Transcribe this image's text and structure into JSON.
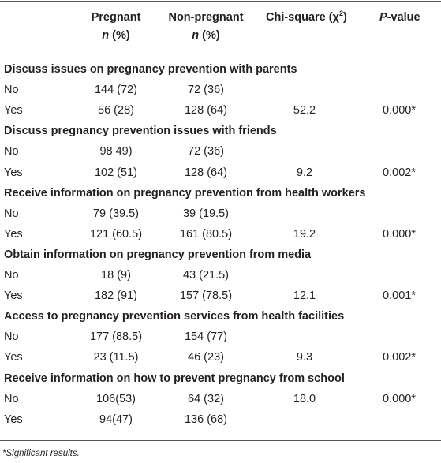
{
  "header": {
    "pregnant": {
      "title": "Pregnant",
      "sub_italic": "n",
      "sub_rest": " (%)"
    },
    "non_pregnant": {
      "title": "Non-pregnant",
      "sub_italic": "n",
      "sub_rest": " (%)"
    },
    "chi_square": {
      "text": "Chi-square (χ",
      "sup": "2",
      "tail": ")"
    },
    "p_value": {
      "italic": "P",
      "rest": "-value"
    }
  },
  "sections": [
    {
      "title": "Discuss issues on pregnancy prevention with parents",
      "rows": [
        [
          "No",
          "144 (72)",
          "72 (36)"
        ],
        [
          "Yes",
          "56 (28)",
          "128 (64)",
          "52.2",
          "0.000*"
        ]
      ]
    },
    {
      "title": "Discuss pregnancy prevention issues with friends",
      "rows": [
        [
          "No",
          "98 49)",
          "72 (36)"
        ],
        [
          "Yes",
          "102 (51)",
          "128 (64)",
          "9.2",
          "0.002*"
        ]
      ]
    },
    {
      "title": "Receive information on pregnancy prevention from health workers",
      "rows": [
        [
          "No",
          "79 (39.5)",
          "39 (19.5)"
        ],
        [
          "Yes",
          "121 (60.5)",
          "161 (80.5)",
          "19.2",
          "0.000*"
        ]
      ]
    },
    {
      "title": "Obtain information on pregnancy prevention from media",
      "rows": [
        [
          "No",
          "18 (9)",
          "43 (21.5)"
        ],
        [
          "Yes",
          "182 (91)",
          "157 (78.5)",
          "12.1",
          "0.001*"
        ]
      ]
    },
    {
      "title": "Access to pregnancy prevention services from health facilities",
      "rows": [
        [
          "No",
          "177 (88.5)",
          "154 (77)"
        ],
        [
          "Yes",
          "23 (11.5)",
          "46 (23)",
          "9.3",
          "0.002*"
        ]
      ]
    },
    {
      "title": "Receive information on how to prevent pregnancy from school",
      "rows": [
        [
          "No",
          "106(53)",
          "64 (32)",
          "18.0",
          "0.000*"
        ],
        [
          "Yes",
          "94(47)",
          "136 (68)"
        ]
      ]
    }
  ],
  "footnote": "*Significant results."
}
